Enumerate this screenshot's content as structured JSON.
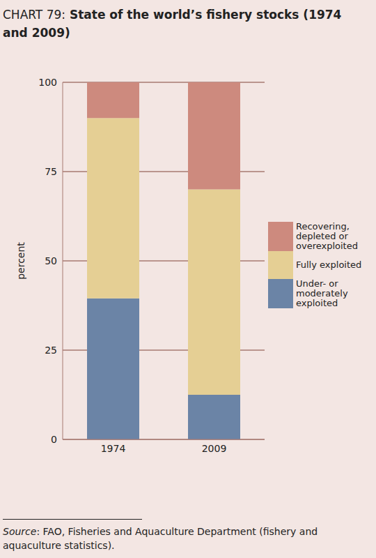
{
  "chart_data": {
    "type": "bar",
    "title": "CHART 79: State of the world’s fishery stocks (1974 and 2009)",
    "y_label": "percent",
    "categories": [
      "1974",
      "2009"
    ],
    "series": [
      {
        "name": "Under- or moderately exploited",
        "color": "#6b84a6",
        "values": [
          39.5,
          12.5
        ]
      },
      {
        "name": "Fully exploited",
        "color": "#e5cf94",
        "values": [
          50.5,
          57.5
        ]
      },
      {
        "name": "Recovering, depleted or overexploited",
        "color": "#cd8a7e",
        "values": [
          10,
          30
        ]
      }
    ],
    "ylim": [
      0,
      100
    ],
    "yticks": [
      0,
      25,
      50,
      75,
      100
    ],
    "stacked": true,
    "grid": true,
    "legend": "right",
    "source": "Source: FAO, Fisheries and Aquaculture Department (fishery and aquaculture statistics)."
  }
}
